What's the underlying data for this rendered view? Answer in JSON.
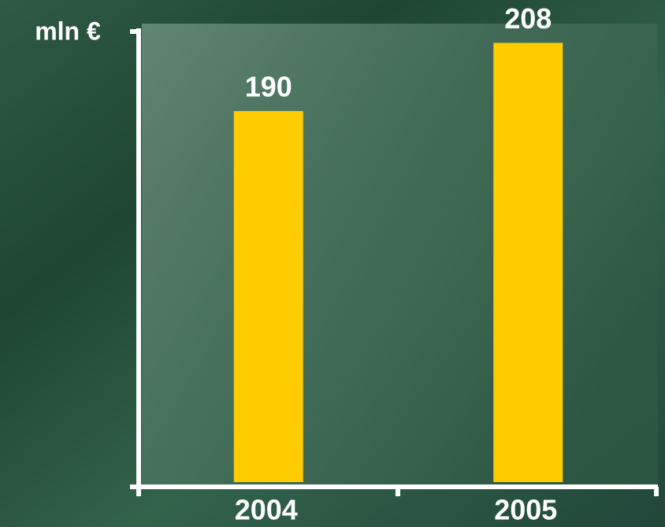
{
  "chart_data": {
    "type": "bar",
    "y_axis_label": "mln €",
    "categories": [
      "2004",
      "2005"
    ],
    "values": [
      190,
      208
    ],
    "color": "#ffcc00",
    "ylim": [
      92,
      211
    ]
  }
}
